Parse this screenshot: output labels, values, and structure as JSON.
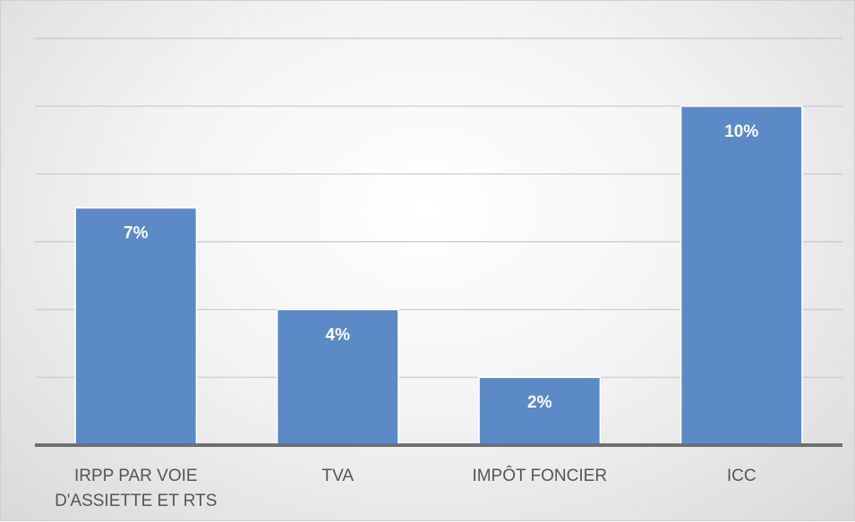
{
  "chart_data": {
    "type": "bar",
    "title": "",
    "xlabel": "",
    "ylabel": "",
    "categories": [
      "IRPP PAR VOIE D'ASSIETTE ET RTS",
      "TVA",
      "IMPÔT FONCIER",
      "ICC"
    ],
    "category_lines": [
      [
        "IRPP PAR VOIE",
        "D'ASSIETTE ET RTS"
      ],
      [
        "TVA"
      ],
      [
        "IMPÔT FONCIER"
      ],
      [
        "ICC"
      ]
    ],
    "values": [
      7,
      4,
      2,
      10
    ],
    "data_labels": [
      "7%",
      "4%",
      "2%",
      "10%"
    ],
    "unit": "%",
    "ylim": [
      0,
      12
    ],
    "grid": true,
    "bar_color": "#5b8ac6",
    "bar_border_color": "#ffffff"
  }
}
